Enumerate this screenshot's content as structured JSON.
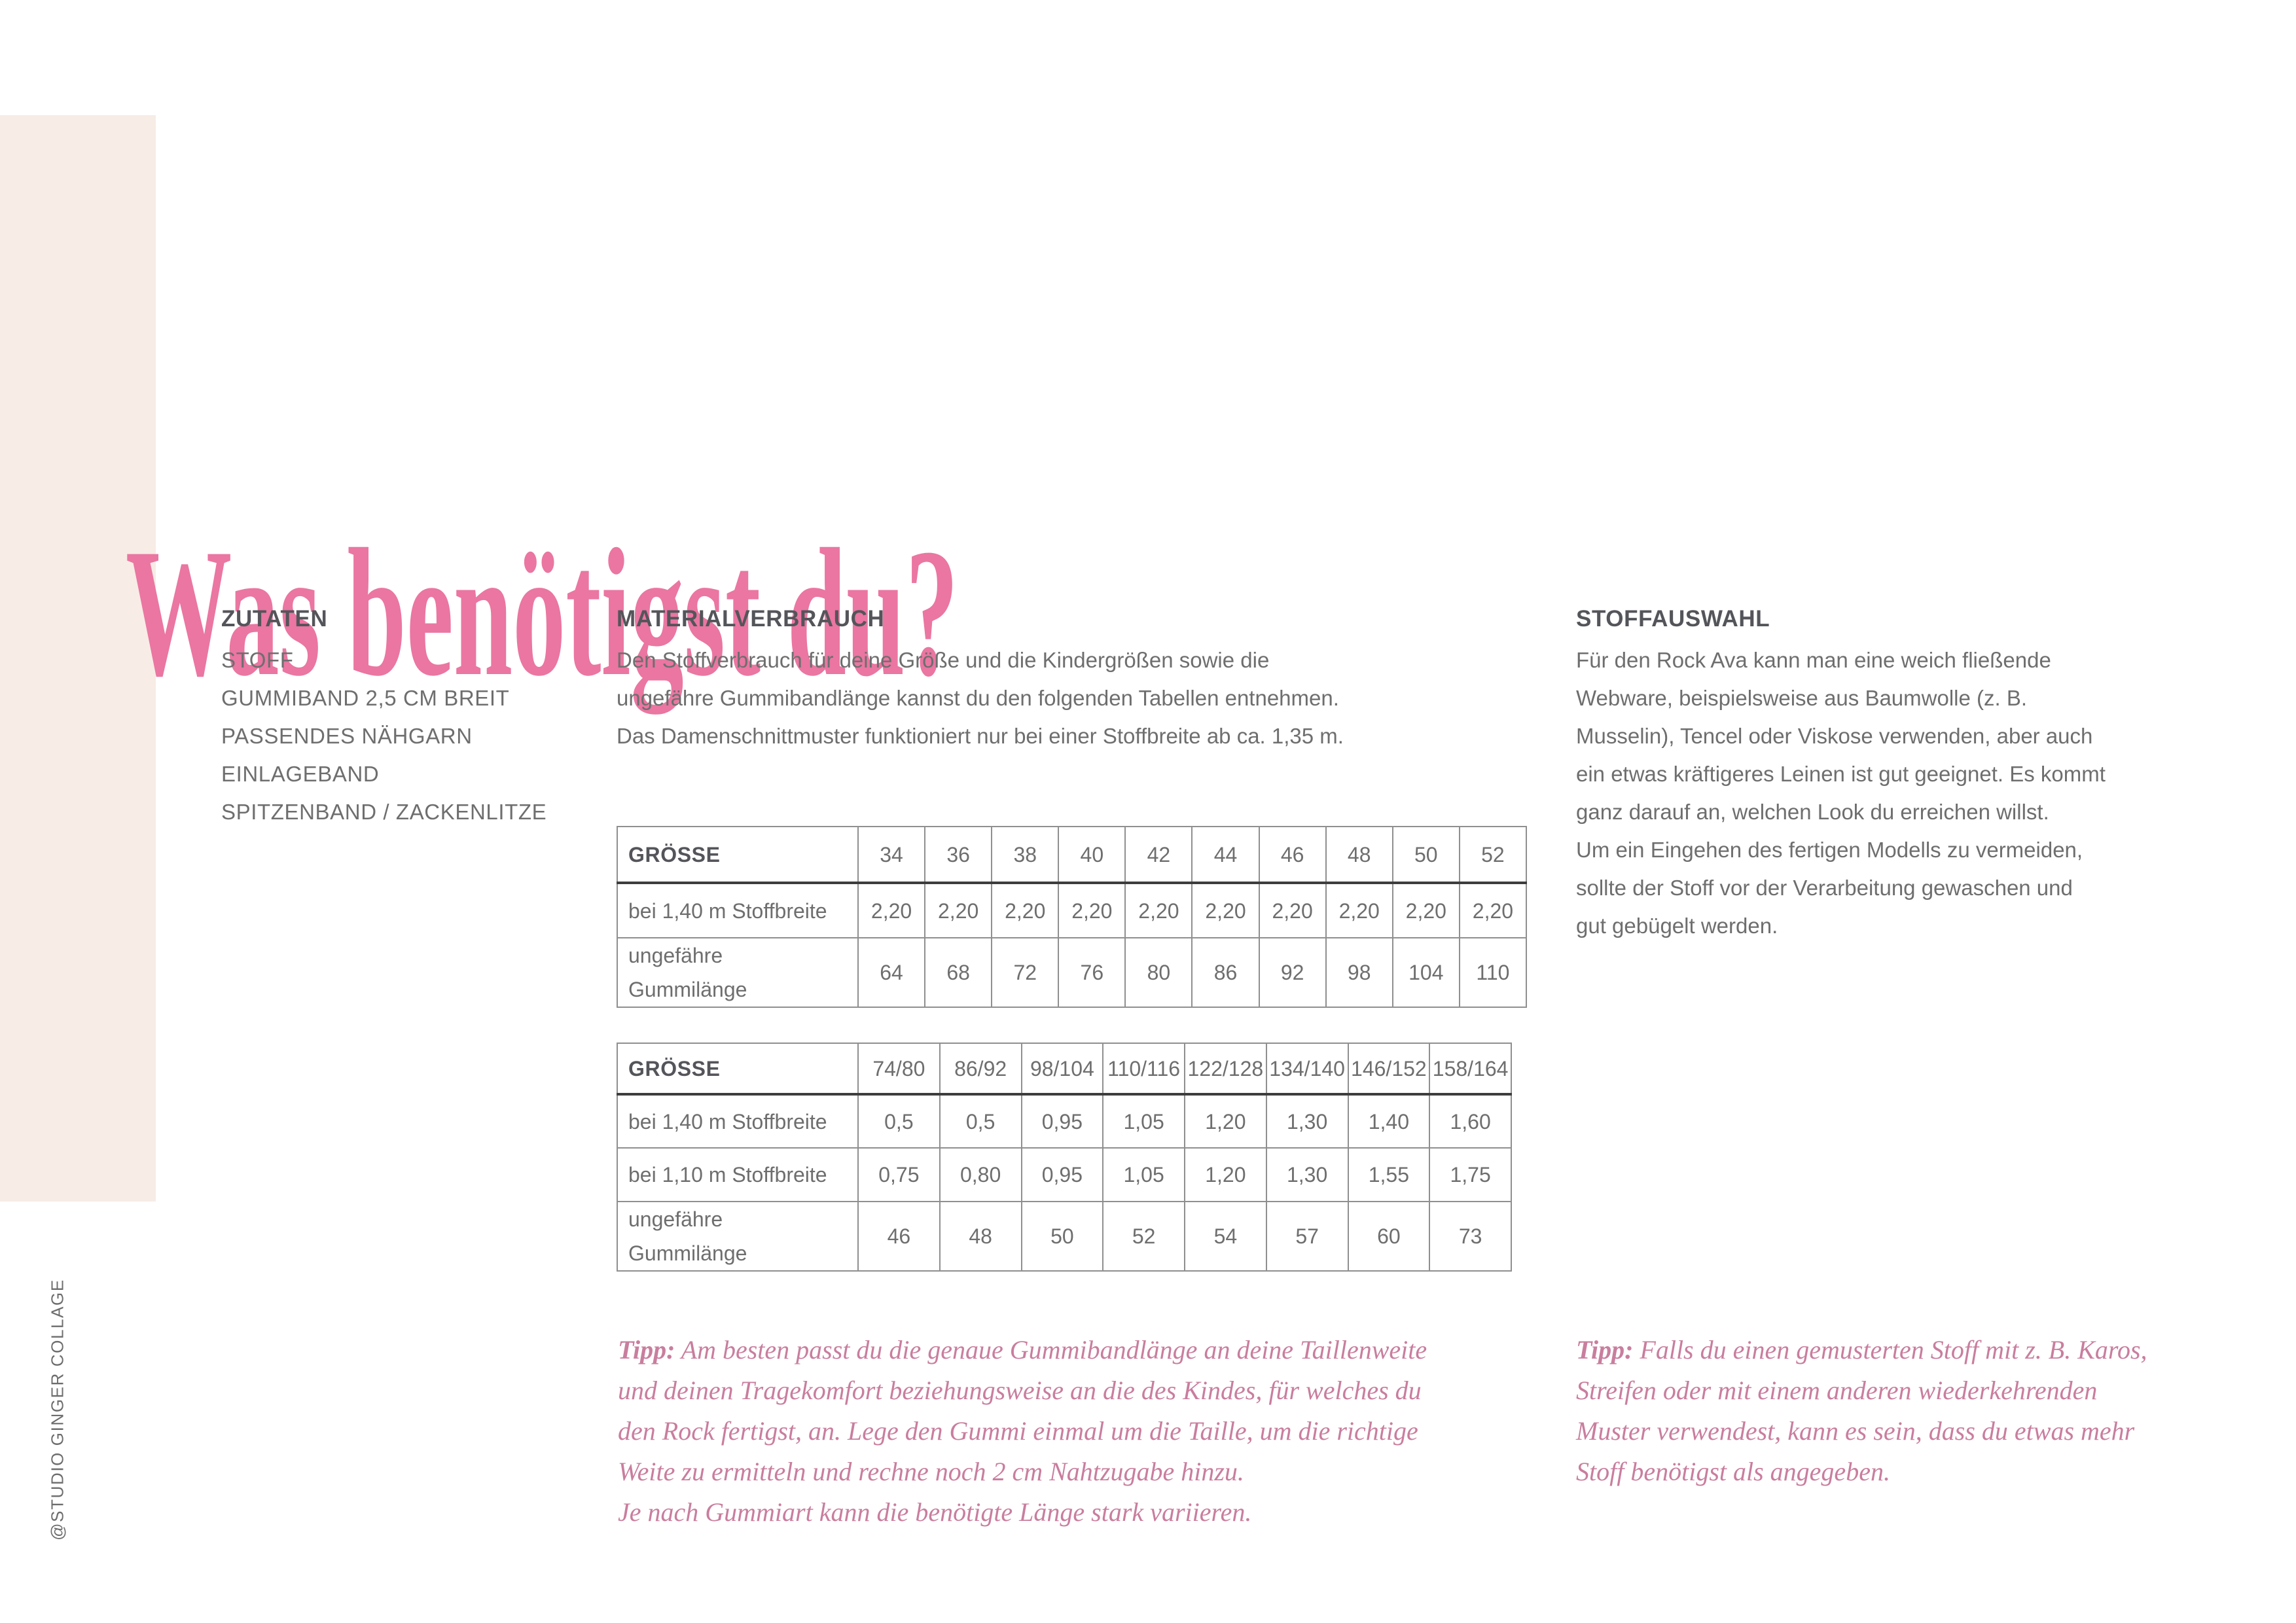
{
  "page": {
    "title": "Was benötigst du?",
    "credit": "@STUDIO GINGER COLLAGE",
    "colors": {
      "accent_pink": "#ea76a1",
      "tip_pink": "#c97e9e",
      "stripe_cream": "#f7ece6",
      "body_gray": "#6e6e6e",
      "heading_gray": "#54555a"
    }
  },
  "ingredients": {
    "heading": "ZUTATEN",
    "items": [
      "STOFF",
      "GUMMIBAND 2,5 CM BREIT",
      "PASSENDES NÄHGARN",
      "EINLAGEBAND",
      "SPITZENBAND / ZACKENLITZE"
    ]
  },
  "material": {
    "heading": "MATERIALVERBRAUCH",
    "lines": [
      "Den Stoffverbrauch für deine Größe und die Kindergrößen sowie die",
      "ungefähre Gummibandlänge kannst du den folgenden Tabellen entnehmen.",
      "Das Damenschnittmuster funktioniert nur bei einer Stoffbreite ab ca. 1,35 m."
    ]
  },
  "fabric": {
    "heading": "STOFFAUSWAHL",
    "lines": [
      "Für den Rock Ava kann man eine weich fließende",
      "Webware, beispielsweise aus Baumwolle (z. B.",
      "Musselin), Tencel oder Viskose verwenden, aber auch",
      "ein etwas kräftigeres Leinen ist gut geeignet. Es kommt",
      "ganz darauf an, welchen Look du erreichen willst.",
      "Um ein Eingehen des fertigen Modells zu vermeiden,",
      "sollte der Stoff vor der Verarbeitung gewaschen und",
      "gut gebügelt werden."
    ]
  },
  "tables": {
    "adult": {
      "header": [
        "GRÖSSE",
        "34",
        "36",
        "38",
        "40",
        "42",
        "44",
        "46",
        "48",
        "50",
        "52"
      ],
      "rows": [
        [
          "bei 1,40 m Stoffbreite",
          "2,20",
          "2,20",
          "2,20",
          "2,20",
          "2,20",
          "2,20",
          "2,20",
          "2,20",
          "2,20",
          "2,20"
        ],
        [
          "ungefähre\nGummilänge",
          "64",
          "68",
          "72",
          "76",
          "80",
          "86",
          "92",
          "98",
          "104",
          "110"
        ]
      ]
    },
    "kids": {
      "header": [
        "GRÖSSE",
        "74/80",
        "86/92",
        "98/104",
        "110/116",
        "122/128",
        "134/140",
        "146/152",
        "158/164"
      ],
      "rows": [
        [
          "bei 1,40 m Stoffbreite",
          "0,5",
          "0,5",
          "0,95",
          "1,05",
          "1,20",
          "1,30",
          "1,40",
          "1,60"
        ],
        [
          "bei 1,10 m Stoffbreite",
          "0,75",
          "0,80",
          "0,95",
          "1,05",
          "1,20",
          "1,30",
          "1,55",
          "1,75"
        ],
        [
          "ungefähre\nGummilänge",
          "46",
          "48",
          "50",
          "52",
          "54",
          "57",
          "60",
          "73"
        ]
      ]
    }
  },
  "tips": {
    "left": {
      "prefix": "Tipp:",
      "first_line": " Am besten passt du die genaue Gummibandlänge an deine Taillenweite",
      "rest_lines": [
        "und deinen Tragekomfort beziehungsweise an die des Kindes, für welches du",
        "den Rock fertigst, an. Lege den Gummi einmal um die Taille, um die richtige",
        "Weite zu ermitteln und rechne noch 2 cm Nahtzugabe hinzu.",
        "Je nach Gummiart kann die benötigte Länge stark variieren."
      ]
    },
    "right": {
      "prefix": "Tipp:",
      "first_line": " Falls du einen gemusterten Stoff mit z. B. Karos,",
      "rest_lines": [
        "Streifen oder mit einem anderen wiederkehrenden",
        "Muster verwendest, kann es sein, dass du etwas mehr",
        "Stoff benötigst als angegeben."
      ]
    }
  }
}
